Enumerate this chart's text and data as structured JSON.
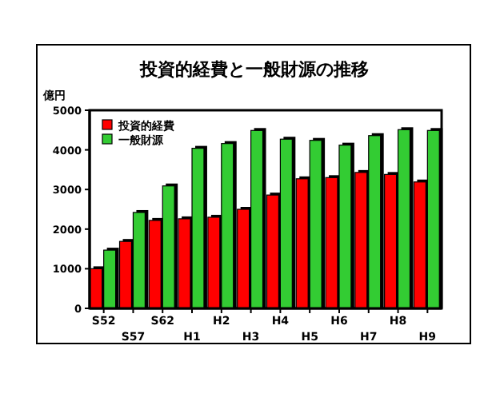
{
  "chart_data": {
    "type": "bar",
    "title": "投資的経費と一般財源の推移",
    "ylabel": "億円",
    "categories": [
      "S52",
      "S57",
      "S62",
      "H1",
      "H2",
      "H3",
      "H4",
      "H5",
      "H6",
      "H7",
      "H8",
      "H9"
    ],
    "series": [
      {
        "name": "投資的経費",
        "color": "#ff0000",
        "values": [
          1000,
          1690,
          2220,
          2260,
          2300,
          2500,
          2860,
          3270,
          3300,
          3430,
          3380,
          3190
        ]
      },
      {
        "name": "一般財源",
        "color": "#33cc33",
        "values": [
          1470,
          2420,
          3090,
          4040,
          4160,
          4490,
          4270,
          4240,
          4120,
          4360,
          4510,
          4490
        ]
      }
    ],
    "ylim": [
      0,
      5000
    ],
    "yticks": [
      0,
      1000,
      2000,
      3000,
      4000,
      5000
    ],
    "grid": false,
    "legend": "top left"
  }
}
